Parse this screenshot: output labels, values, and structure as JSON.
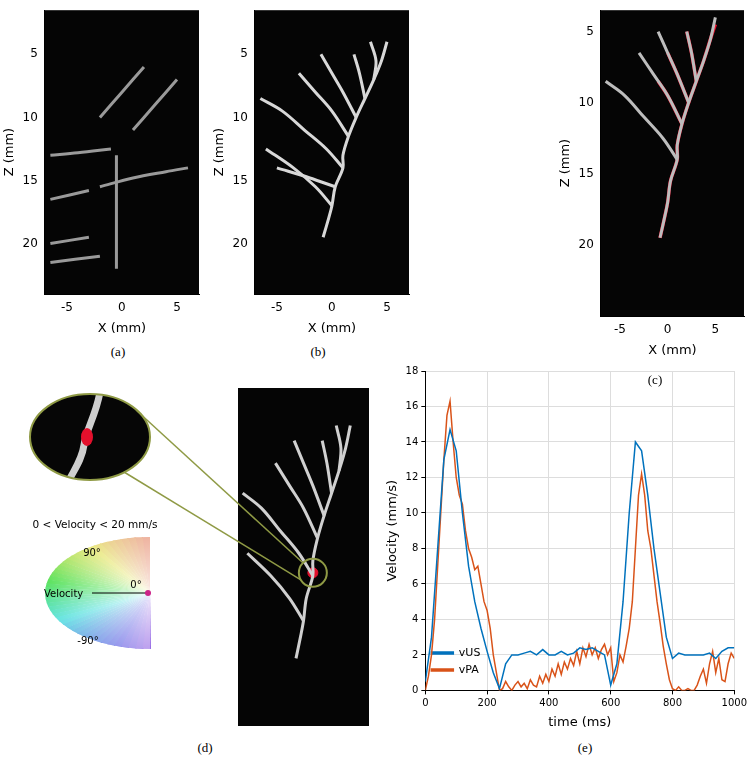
{
  "panels": [
    {
      "label": "(a)",
      "type": "image",
      "xlabel": "X (mm)",
      "ylabel": "Z (mm)",
      "xlim": [
        -7,
        7
      ],
      "ylim": [
        24,
        1.5
      ],
      "xticks": [
        -5,
        0,
        5
      ],
      "yticks": [
        5,
        10,
        15,
        20
      ],
      "color": "#9a9a9a",
      "vessels": [
        [
          [
            -6.5,
            13
          ],
          [
            -4,
            12.8
          ],
          [
            -1,
            12.5
          ]
        ],
        [
          [
            -2,
            15.5
          ],
          [
            1,
            14.8
          ],
          [
            4,
            14.3
          ],
          [
            6,
            14
          ]
        ],
        [
          [
            -6.5,
            16.5
          ],
          [
            -3,
            15.8
          ]
        ],
        [
          [
            -6.5,
            20
          ],
          [
            -3,
            19.5
          ]
        ],
        [
          [
            -6.5,
            21.5
          ],
          [
            -2,
            21
          ]
        ],
        [
          [
            -2,
            10
          ],
          [
            0,
            8
          ],
          [
            2,
            6
          ]
        ],
        [
          [
            1,
            11
          ],
          [
            3,
            9
          ],
          [
            5,
            7
          ]
        ],
        [
          [
            -0.5,
            13
          ],
          [
            -0.5,
            22
          ]
        ]
      ]
    },
    {
      "label": "(b)",
      "type": "image",
      "xlabel": "X (mm)",
      "ylabel": "Z (mm)",
      "xlim": [
        -7,
        7
      ],
      "ylim": [
        24,
        1.5
      ],
      "xticks": [
        -5,
        0,
        5
      ],
      "yticks": [
        5,
        10,
        15,
        20
      ],
      "color": "#d8d8d8",
      "vessels": [
        [
          [
            -0.8,
            19.5
          ],
          [
            -0.3,
            18
          ],
          [
            0,
            17
          ],
          [
            0.3,
            15.5
          ],
          [
            1,
            14
          ],
          [
            1,
            13
          ],
          [
            1.5,
            11.5
          ],
          [
            2.2,
            10
          ],
          [
            3,
            8.5
          ],
          [
            3.8,
            7
          ],
          [
            4.5,
            5.5
          ],
          [
            5,
            4
          ]
        ],
        [
          [
            0,
            17
          ],
          [
            -1.5,
            15.5
          ],
          [
            -3.5,
            14
          ],
          [
            -6,
            12.5
          ]
        ],
        [
          [
            1,
            14
          ],
          [
            -0.5,
            12.5
          ],
          [
            -2.5,
            11
          ],
          [
            -4.5,
            9.5
          ],
          [
            -6.5,
            8.5
          ]
        ],
        [
          [
            1.5,
            11.5
          ],
          [
            0,
            9.5
          ],
          [
            -1.5,
            8
          ],
          [
            -3,
            6.5
          ]
        ],
        [
          [
            2.2,
            10
          ],
          [
            1,
            8
          ],
          [
            0,
            6.5
          ],
          [
            -1,
            5
          ]
        ],
        [
          [
            3,
            8.5
          ],
          [
            2.5,
            6.5
          ],
          [
            2,
            5
          ]
        ],
        [
          [
            3.8,
            7
          ],
          [
            4,
            5.5
          ],
          [
            3.5,
            4
          ]
        ],
        [
          [
            0.3,
            15.5
          ],
          [
            -2,
            14.8
          ],
          [
            -5,
            14
          ]
        ]
      ]
    },
    {
      "label": "(c)",
      "type": "image",
      "xlabel": "X (mm)",
      "ylabel": "Z (mm)",
      "xlim": [
        -7,
        8
      ],
      "ylim": [
        25,
        3.5
      ],
      "xticks": [
        -5,
        0,
        5
      ],
      "yticks": [
        5,
        10,
        15,
        20
      ],
      "color": "#bdbdbd",
      "flow_color": "#e3102c",
      "vessels": [
        [
          [
            -0.8,
            19.5
          ],
          [
            -0.3,
            18
          ],
          [
            0,
            17
          ],
          [
            0.3,
            15.5
          ],
          [
            1,
            14
          ],
          [
            1,
            13
          ],
          [
            1.5,
            11.5
          ],
          [
            2.2,
            10
          ],
          [
            3,
            8.5
          ],
          [
            3.8,
            7
          ],
          [
            4.5,
            5.5
          ],
          [
            5,
            4
          ]
        ],
        [
          [
            1,
            14
          ],
          [
            -0.5,
            12.5
          ],
          [
            -2.5,
            11
          ],
          [
            -4.5,
            9.5
          ],
          [
            -6.5,
            8.5
          ]
        ],
        [
          [
            1.5,
            11.5
          ],
          [
            0,
            9.5
          ],
          [
            -1.5,
            8
          ],
          [
            -3,
            6.5
          ]
        ],
        [
          [
            2.2,
            10
          ],
          [
            1,
            8
          ],
          [
            0,
            6.5
          ],
          [
            -1,
            5
          ]
        ],
        [
          [
            3,
            8.5
          ],
          [
            2.5,
            6.5
          ],
          [
            2,
            5
          ]
        ]
      ],
      "flow": [
        [
          [
            -0.8,
            19.5
          ],
          [
            -0.3,
            18
          ],
          [
            0,
            17
          ],
          [
            0.3,
            15.5
          ],
          [
            1,
            14
          ],
          [
            1,
            13
          ],
          [
            1.5,
            11.5
          ],
          [
            2.2,
            10
          ],
          [
            3,
            8.5
          ],
          [
            3.8,
            7
          ],
          [
            4.5,
            5.5
          ],
          [
            5,
            4.5
          ]
        ],
        [
          [
            2.2,
            10
          ],
          [
            1,
            8
          ],
          [
            0,
            6.5
          ]
        ],
        [
          [
            3,
            8.5
          ],
          [
            2.5,
            6.5
          ],
          [
            2,
            5
          ]
        ],
        [
          [
            1.5,
            11.5
          ],
          [
            0,
            9.5
          ],
          [
            -1,
            8.5
          ]
        ]
      ]
    },
    {
      "label": "(d)",
      "type": "image",
      "tick_labels": false,
      "xlim": [
        -7,
        7
      ],
      "ylim": [
        24,
        1.5
      ],
      "color": "#d0d0d0",
      "flow_color": "#e3102c",
      "vessels": [
        [
          [
            -0.8,
            19.5
          ],
          [
            -0.3,
            18
          ],
          [
            0,
            17
          ],
          [
            0.3,
            15.5
          ],
          [
            1,
            14
          ],
          [
            1,
            13
          ],
          [
            1.5,
            11.5
          ],
          [
            2.2,
            10
          ],
          [
            3,
            8.5
          ],
          [
            3.8,
            7
          ],
          [
            4.5,
            5.5
          ],
          [
            5,
            4
          ]
        ],
        [
          [
            0,
            17
          ],
          [
            -1.5,
            15.5
          ],
          [
            -3.5,
            14
          ],
          [
            -6,
            12.5
          ]
        ],
        [
          [
            1,
            14
          ],
          [
            -0.5,
            12.5
          ],
          [
            -2.5,
            11
          ],
          [
            -4.5,
            9.5
          ],
          [
            -6.5,
            8.5
          ]
        ],
        [
          [
            1.5,
            11.5
          ],
          [
            0,
            9.5
          ],
          [
            -1.5,
            8
          ],
          [
            -3,
            6.5
          ]
        ],
        [
          [
            2.2,
            10
          ],
          [
            1,
            8
          ],
          [
            0,
            6.5
          ],
          [
            -1,
            5
          ]
        ],
        [
          [
            3,
            8.5
          ],
          [
            2.5,
            6.5
          ],
          [
            2,
            5
          ]
        ],
        [
          [
            3.8,
            7
          ],
          [
            4,
            5.5
          ],
          [
            3.5,
            4
          ]
        ]
      ],
      "flow_point": [
        1,
        13.8
      ],
      "wheel": {
        "title": "0 < Velocity < 20 mm/s",
        "top": "90°",
        "arrow": "Velocity",
        "zero": "0°",
        "bottom": "-90°"
      }
    }
  ],
  "chart_label": "(e)",
  "chart_data": {
    "type": "line",
    "xlabel": "time (ms)",
    "ylabel": "Velocity (mm/s)",
    "xlim": [
      0,
      1000
    ],
    "ylim": [
      0,
      18
    ],
    "xticks": [
      0,
      200,
      400,
      600,
      800,
      1000
    ],
    "yticks": [
      0,
      2,
      4,
      6,
      8,
      10,
      12,
      14,
      16,
      18
    ],
    "grid": true,
    "legend": "upper right",
    "series": [
      {
        "name": "vUS",
        "color": "#0072bd",
        "x": [
          0,
          20,
          40,
          60,
          80,
          100,
          120,
          140,
          160,
          180,
          200,
          220,
          240,
          260,
          280,
          300,
          320,
          340,
          360,
          380,
          400,
          420,
          440,
          460,
          480,
          500,
          520,
          540,
          560,
          580,
          600,
          620,
          640,
          660,
          680,
          700,
          720,
          740,
          760,
          780,
          800,
          820,
          840,
          860,
          880,
          900,
          920,
          940,
          960,
          980,
          1000
        ],
        "values": [
          0.5,
          3,
          8,
          13,
          14.7,
          13.5,
          10,
          7,
          5,
          3.5,
          2.2,
          1,
          0.1,
          1.5,
          2,
          2,
          2.1,
          2.2,
          2,
          2.3,
          2,
          2,
          2.2,
          2,
          2.1,
          2.4,
          2.3,
          2.4,
          2.2,
          2,
          0.3,
          1.5,
          5,
          10,
          14,
          13.5,
          11,
          8,
          5.5,
          3,
          1.8,
          2.1,
          2,
          2,
          2,
          2,
          2.1,
          1.8,
          2.2,
          2.4,
          2.4
        ]
      },
      {
        "name": "vPA",
        "color": "#d95319",
        "x": [
          0,
          10,
          20,
          30,
          40,
          50,
          60,
          70,
          80,
          90,
          100,
          110,
          120,
          130,
          140,
          150,
          160,
          170,
          180,
          190,
          200,
          210,
          220,
          230,
          240,
          250,
          260,
          270,
          280,
          290,
          300,
          310,
          320,
          330,
          340,
          350,
          360,
          370,
          380,
          390,
          400,
          410,
          420,
          430,
          440,
          450,
          460,
          470,
          480,
          490,
          500,
          510,
          520,
          530,
          540,
          550,
          560,
          570,
          580,
          590,
          600,
          610,
          620,
          630,
          640,
          650,
          660,
          670,
          680,
          690,
          700,
          710,
          720,
          730,
          740,
          750,
          760,
          770,
          780,
          790,
          800,
          810,
          820,
          830,
          840,
          850,
          860,
          870,
          880,
          890,
          900,
          910,
          920,
          930,
          940,
          950,
          960,
          970,
          980,
          990,
          1000
        ],
        "values": [
          0,
          0.8,
          2,
          4,
          7,
          10,
          13,
          15.5,
          16.3,
          14,
          12,
          11,
          10.5,
          9,
          8,
          7.5,
          6.8,
          7,
          6,
          5,
          4.5,
          3.5,
          2,
          1,
          0,
          0.1,
          0.5,
          0.2,
          0,
          0.3,
          0.5,
          0.2,
          0.4,
          0.1,
          0.6,
          0.3,
          0.2,
          0.8,
          0.4,
          0.9,
          0.5,
          1.2,
          0.8,
          1.5,
          0.9,
          1.6,
          1.2,
          1.8,
          1.4,
          2.2,
          1.5,
          2.4,
          1.9,
          2.6,
          2,
          2.4,
          1.8,
          2.3,
          2.6,
          2,
          2.4,
          0.5,
          1,
          2,
          1.6,
          2.5,
          3.5,
          5,
          8,
          11,
          12.2,
          11,
          9,
          8,
          6.5,
          5,
          3.8,
          2.5,
          1.5,
          0.6,
          0.1,
          0,
          0.2,
          0,
          0,
          0.1,
          0,
          0,
          0.3,
          0.8,
          1.2,
          0.4,
          1.5,
          2.2,
          1,
          1.8,
          0.6,
          0.5,
          1.5,
          2.1,
          1.8
        ]
      }
    ]
  }
}
